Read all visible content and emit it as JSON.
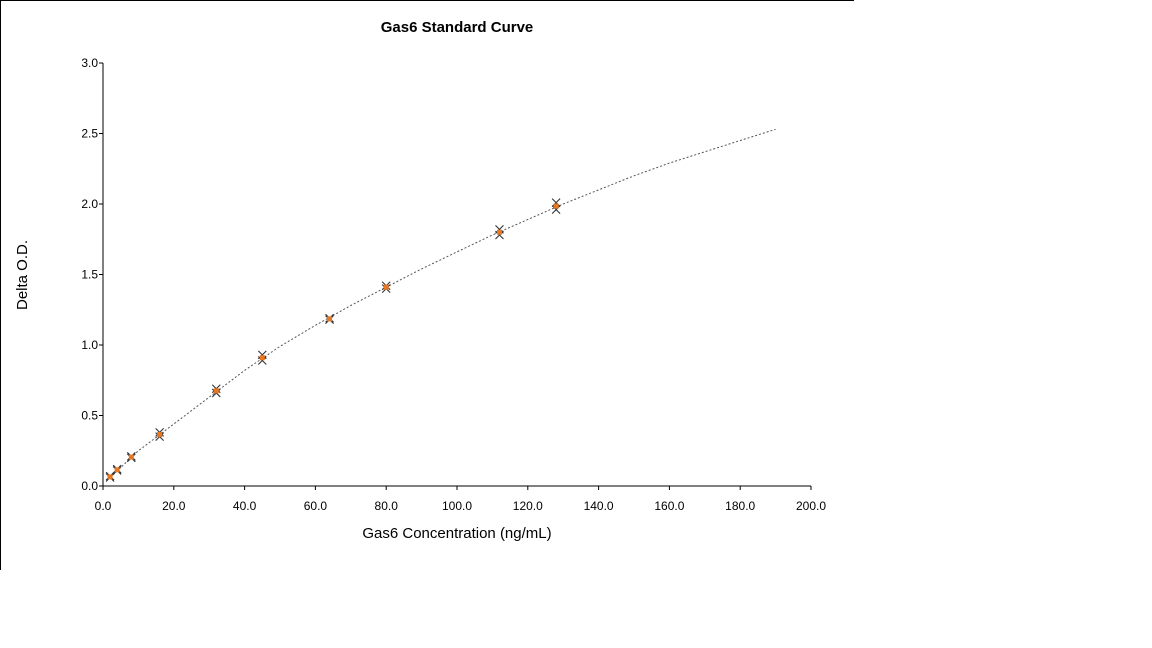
{
  "chart_data": {
    "type": "scatter",
    "title": "Gas6 Standard Curve",
    "xlabel": "Gas6 Concentration (ng/mL)",
    "ylabel": "Delta O.D.",
    "xlim": [
      0,
      200
    ],
    "ylim": [
      0,
      3
    ],
    "x_ticks": [
      "0.0",
      "20.0",
      "40.0",
      "60.0",
      "80.0",
      "100.0",
      "120.0",
      "140.0",
      "160.0",
      "180.0",
      "200.0"
    ],
    "y_ticks": [
      "0.0",
      "0.5",
      "1.0",
      "1.5",
      "2.0",
      "2.5",
      "3.0"
    ],
    "grid": false,
    "series": [
      {
        "marker": "x",
        "color": "#333333",
        "points": [
          {
            "x": 2,
            "y": 0.06
          },
          {
            "x": 2,
            "y": 0.07
          },
          {
            "x": 4,
            "y": 0.11
          },
          {
            "x": 4,
            "y": 0.12
          },
          {
            "x": 8,
            "y": 0.2
          },
          {
            "x": 8,
            "y": 0.21
          },
          {
            "x": 16,
            "y": 0.35
          },
          {
            "x": 16,
            "y": 0.38
          },
          {
            "x": 32,
            "y": 0.66
          },
          {
            "x": 32,
            "y": 0.69
          },
          {
            "x": 45,
            "y": 0.89
          },
          {
            "x": 45,
            "y": 0.93
          },
          {
            "x": 64,
            "y": 1.18
          },
          {
            "x": 64,
            "y": 1.19
          },
          {
            "x": 80,
            "y": 1.4
          },
          {
            "x": 80,
            "y": 1.42
          },
          {
            "x": 112,
            "y": 1.78
          },
          {
            "x": 112,
            "y": 1.82
          },
          {
            "x": 128,
            "y": 1.96
          },
          {
            "x": 128,
            "y": 2.01
          }
        ]
      },
      {
        "marker": "square",
        "color": "#e87722",
        "points": [
          {
            "x": 2,
            "y": 0.065
          },
          {
            "x": 4,
            "y": 0.115
          },
          {
            "x": 8,
            "y": 0.205
          },
          {
            "x": 16,
            "y": 0.365
          },
          {
            "x": 32,
            "y": 0.675
          },
          {
            "x": 45,
            "y": 0.91
          },
          {
            "x": 64,
            "y": 1.185
          },
          {
            "x": 80,
            "y": 1.41
          },
          {
            "x": 112,
            "y": 1.8
          },
          {
            "x": 128,
            "y": 1.985
          }
        ]
      }
    ],
    "fit_curve": {
      "style": "dotted",
      "color": "#555555",
      "x_range": [
        2,
        190
      ],
      "points": [
        {
          "x": 2,
          "y": 0.06
        },
        {
          "x": 10,
          "y": 0.25
        },
        {
          "x": 20,
          "y": 0.44
        },
        {
          "x": 30,
          "y": 0.63
        },
        {
          "x": 40,
          "y": 0.82
        },
        {
          "x": 50,
          "y": 0.99
        },
        {
          "x": 60,
          "y": 1.14
        },
        {
          "x": 70,
          "y": 1.28
        },
        {
          "x": 80,
          "y": 1.41
        },
        {
          "x": 90,
          "y": 1.54
        },
        {
          "x": 100,
          "y": 1.66
        },
        {
          "x": 110,
          "y": 1.78
        },
        {
          "x": 120,
          "y": 1.89
        },
        {
          "x": 130,
          "y": 2.0
        },
        {
          "x": 140,
          "y": 2.1
        },
        {
          "x": 150,
          "y": 2.2
        },
        {
          "x": 160,
          "y": 2.29
        },
        {
          "x": 170,
          "y": 2.37
        },
        {
          "x": 180,
          "y": 2.45
        },
        {
          "x": 190,
          "y": 2.53
        }
      ]
    }
  }
}
